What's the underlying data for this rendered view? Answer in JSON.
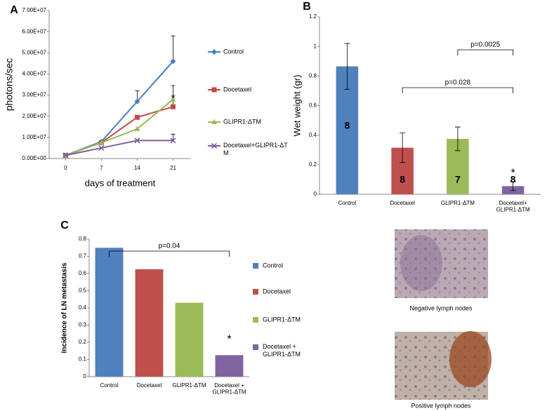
{
  "chart_data": [
    {
      "type": "line",
      "panel": "A",
      "ylabel": "photons/sec",
      "xlabel": "days of treatment",
      "x": [
        0,
        7,
        14,
        21
      ],
      "xlim": [
        -3.2,
        24.5
      ],
      "xticks": [
        0,
        7,
        14,
        21
      ],
      "ylim": [
        0,
        70000000
      ],
      "yticks": [
        {
          "value": 0,
          "label": "0.00E+00"
        },
        {
          "value": 10000000,
          "label": "1.00E+07"
        },
        {
          "value": 20000000,
          "label": "2.00E+07"
        },
        {
          "value": 30000000,
          "label": "3.00E+07"
        },
        {
          "value": 40000000,
          "label": "4.00E+07"
        },
        {
          "value": 50000000,
          "label": "5.00E+07"
        },
        {
          "value": 60000000,
          "label": "6.00E+07"
        },
        {
          "value": 70000000,
          "label": "7.00E+07"
        }
      ],
      "series": [
        {
          "name": "Control",
          "color": "#4a7ebb",
          "marker": "diamond",
          "values": [
            1500000,
            8000000,
            27000000,
            46000000
          ],
          "errors": [
            null,
            null,
            5000000,
            12000000
          ]
        },
        {
          "name": "Docetaxel",
          "color": "#be4b48",
          "marker": "square",
          "values": [
            1500000,
            7500000,
            19500000,
            24500000
          ],
          "errors": [
            null,
            null,
            null,
            10000000
          ]
        },
        {
          "name": "GLIPR1-ΔTM",
          "color": "#98b954",
          "marker": "triangle",
          "values": [
            1500000,
            7500000,
            14000000,
            28000000
          ],
          "errors": [
            null,
            null,
            null,
            null
          ]
        },
        {
          "name": "Docetaxel+GLIPR1-ΔTM",
          "color": "#7d60a0",
          "marker": "cross",
          "values": [
            1500000,
            5000000,
            8500000,
            8500000
          ],
          "errors": [
            null,
            null,
            null,
            3000000
          ]
        }
      ],
      "annotations": [
        "*"
      ]
    },
    {
      "type": "bar",
      "panel": "B",
      "ylabel": "Wet weight (gr)",
      "categories": [
        "Control",
        "Docetaxel",
        "GLIPR1-ΔTM",
        "Docetaxel+\nGLIPR1-ΔTM"
      ],
      "values": [
        0.865,
        0.315,
        0.375,
        0.055
      ],
      "errors": [
        0.155,
        0.1,
        0.08,
        0.03
      ],
      "n_labels": [
        "8",
        "8",
        "7",
        "8"
      ],
      "colors": [
        "#4f81bd",
        "#c0504d",
        "#9bbb59",
        "#8064a2"
      ],
      "ylim": [
        0,
        1.2
      ],
      "yticks": [
        0,
        0.2,
        0.4,
        0.6,
        0.8,
        1,
        1.2
      ],
      "annotations": [
        "p=0.028",
        "p=0.0025",
        "*"
      ]
    },
    {
      "type": "bar",
      "panel": "C",
      "ylabel": "Incidence of LN metastasis",
      "categories": [
        "Control",
        "Docetaxel",
        "GLIPR1-ΔTM",
        "Docetaxel +\nGLIPR1-ΔTM"
      ],
      "values": [
        0.75,
        0.625,
        0.43,
        0.125
      ],
      "colors": [
        "#4f81bd",
        "#c0504d",
        "#9bbb59",
        "#8064a2"
      ],
      "legend": [
        "Control",
        "Docetaxel",
        "GLIPR1-ΔTM",
        "Docetaxel +\nGLIPR1-ΔTM"
      ],
      "ylim": [
        0,
        0.8
      ],
      "yticks": [
        0,
        0.1,
        0.2,
        0.3,
        0.4,
        0.5,
        0.6,
        0.7,
        0.8
      ],
      "annotations": [
        "p=0.04",
        "*"
      ]
    }
  ],
  "images": [
    {
      "caption": "Negative lymph nodes"
    },
    {
      "caption": "Positive lymph nodes"
    }
  ]
}
